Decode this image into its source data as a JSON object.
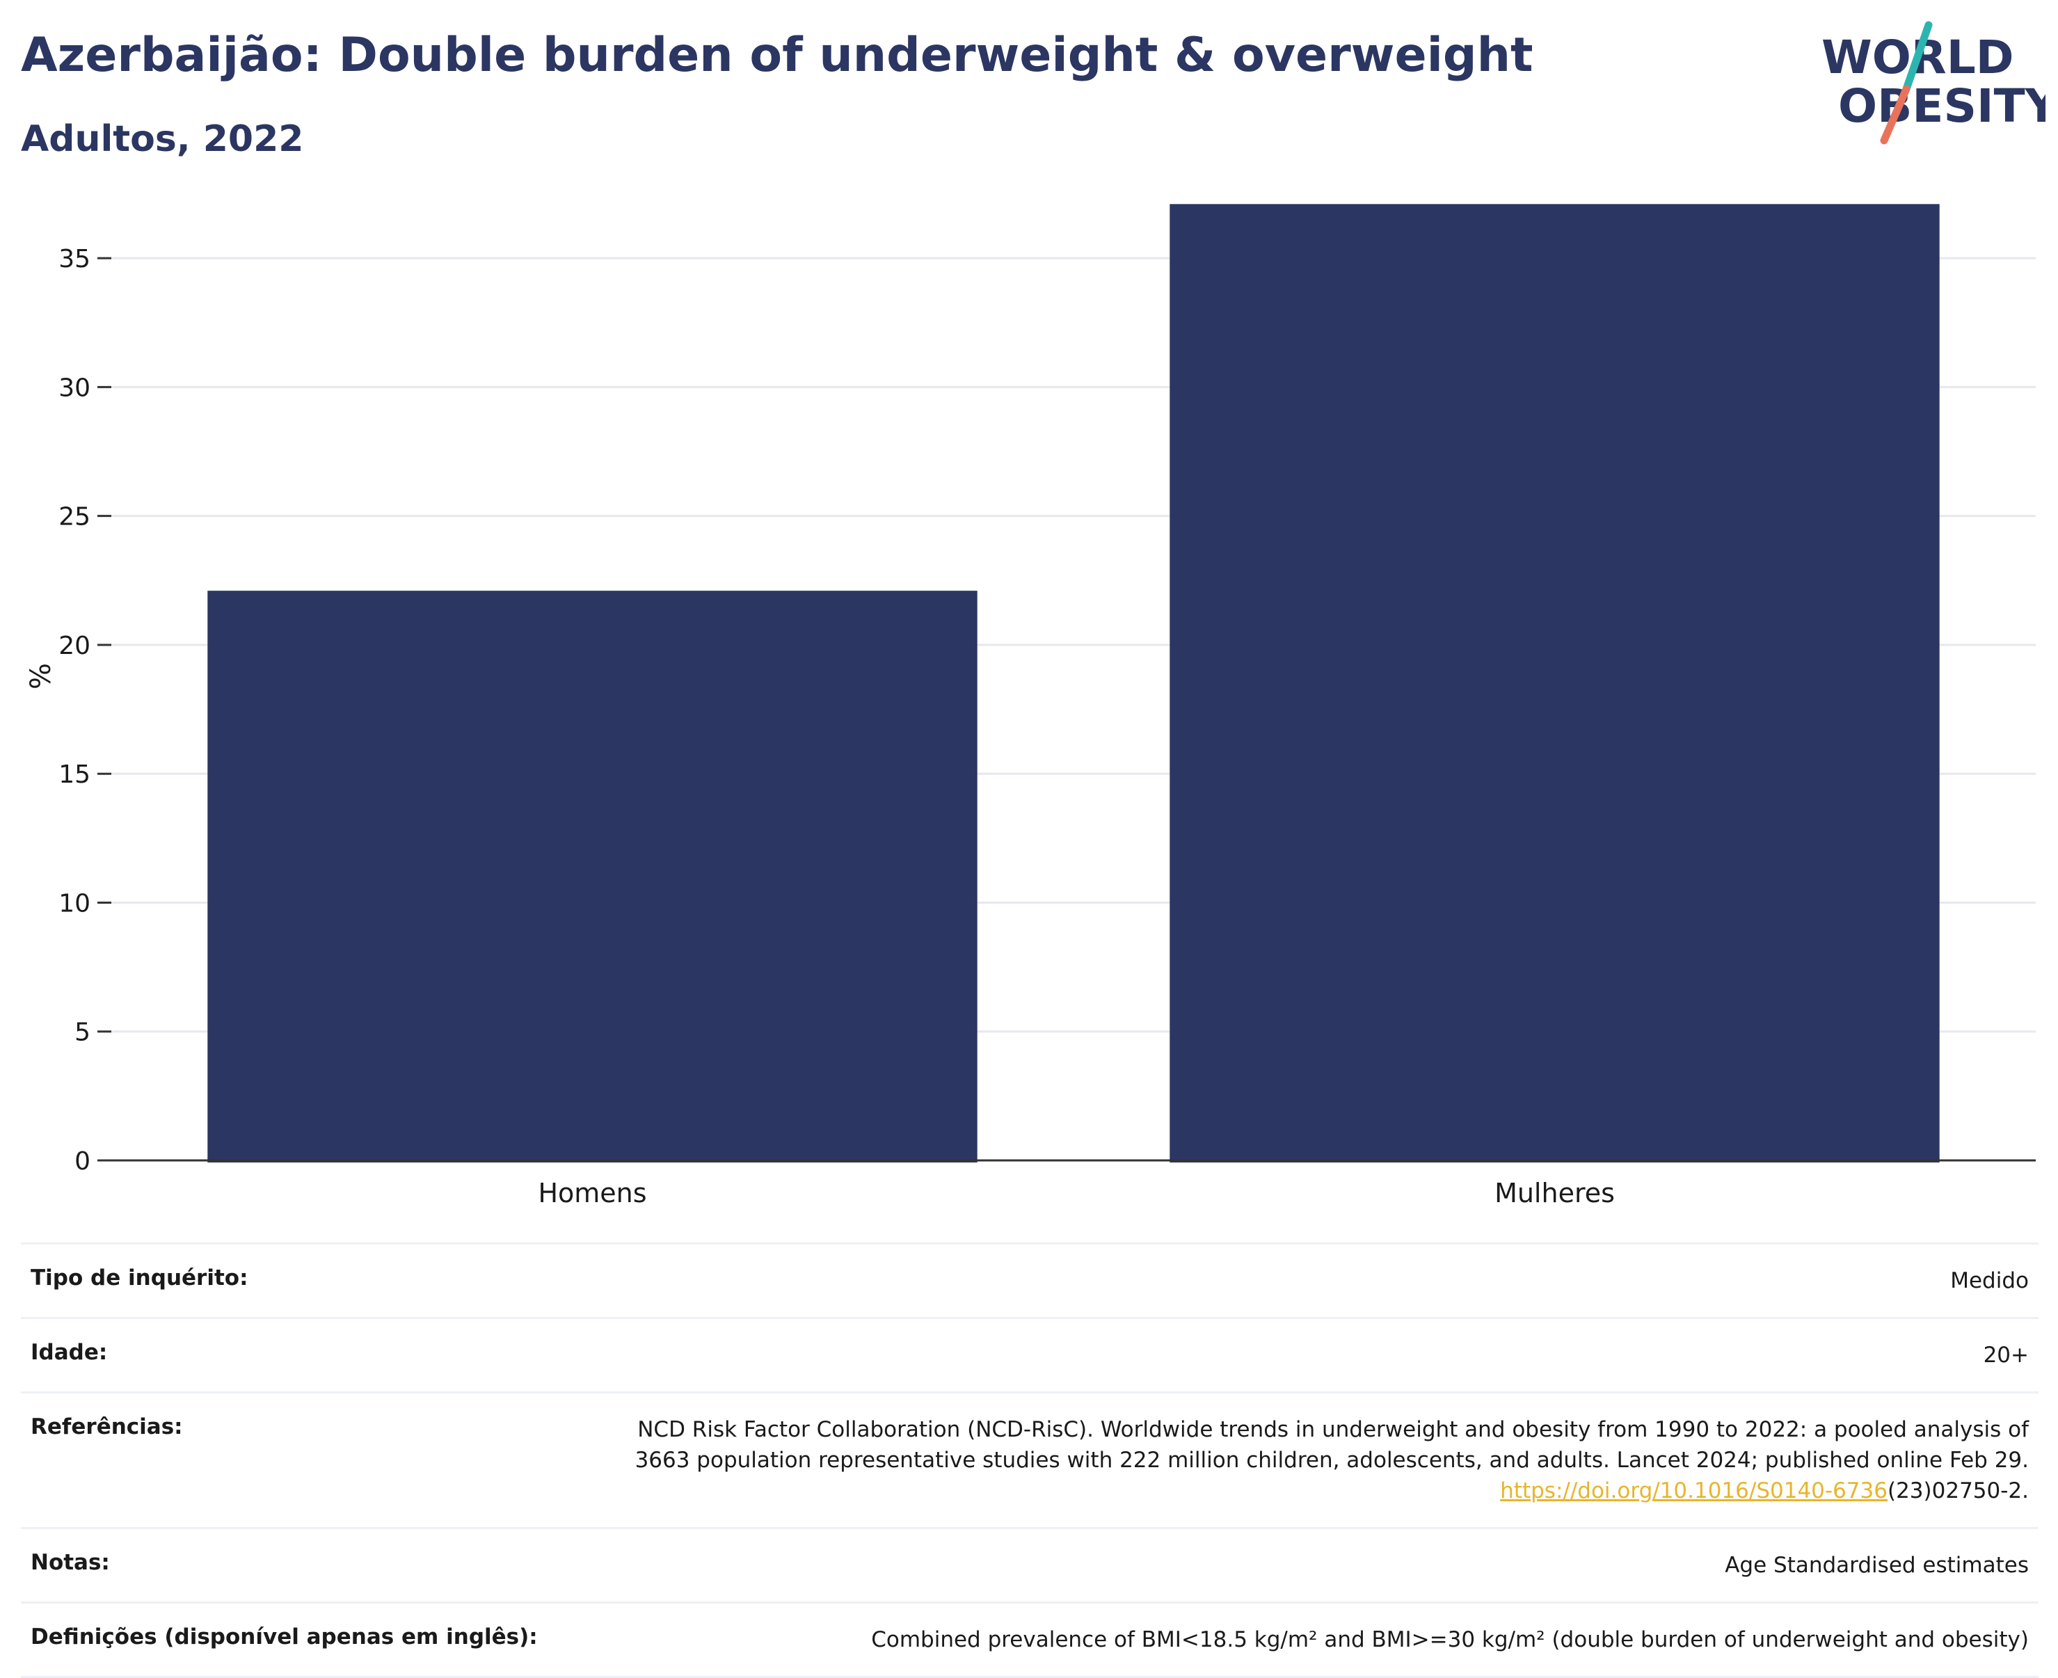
{
  "header": {
    "title": "Azerbaijão: Double burden of underweight & overweight",
    "subtitle": "Adultos, 2022"
  },
  "logo": {
    "line1": "WORLD",
    "line2": "OBESITY",
    "colors": {
      "text": "#2b3662",
      "teal": "#2cb5b0",
      "coral": "#e8735a"
    }
  },
  "colors": {
    "bar": "#2b3662",
    "grid": "#e6e8ef",
    "axis": "#333333",
    "link": "#e8b52b"
  },
  "chart_data": {
    "type": "bar",
    "categories": [
      "Homens",
      "Mulheres"
    ],
    "values": [
      22.1,
      37.1
    ],
    "ylabel": "%",
    "xlabel": "",
    "ylim": [
      0,
      38
    ],
    "yticks": [
      0,
      5,
      10,
      15,
      20,
      25,
      30,
      35
    ],
    "grid": true
  },
  "info": [
    {
      "label": "Tipo de inquérito:",
      "value": "Medido"
    },
    {
      "label": "Idade:",
      "value": "20+"
    },
    {
      "label": "Referências:",
      "value_line1": "NCD Risk Factor Collaboration (NCD-RisC). Worldwide trends in underweight and obesity from 1990 to 2022: a pooled analysis of",
      "value_line2": "3663 population representative studies with 222 million children, adolescents, and adults. Lancet 2024; published online Feb 29.",
      "link_text": "https://doi.org/10.1016/S0140-6736",
      "link_suffix": "(23)02750-2."
    },
    {
      "label": "Notas:",
      "value": "Age Standardised estimates"
    },
    {
      "label": "Definições (disponível apenas em inglês):",
      "value": "Combined prevalence of BMI<18.5 kg/m² and BMI>=30 kg/m² (double burden of underweight and obesity)"
    }
  ]
}
